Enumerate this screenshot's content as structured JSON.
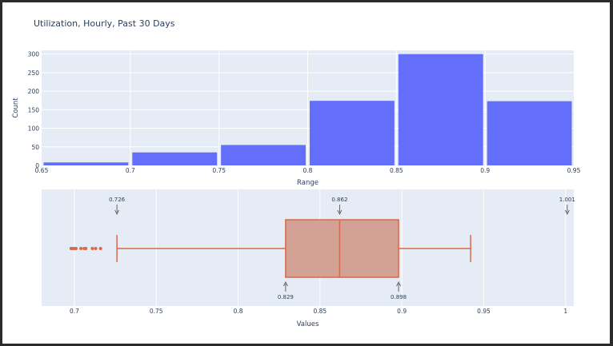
{
  "title": "Utilization, Hourly, Past 30 Days",
  "colors": {
    "plot_bg": "#e5ecf6",
    "grid": "#ffffff",
    "bar": "#636efa",
    "box_fill": "#d4a294",
    "box_line": "#d6694a",
    "text": "#2a3f5f"
  },
  "chart_data": [
    {
      "type": "bar",
      "subtype": "histogram",
      "title": "Utilization, Hourly, Past 30 Days",
      "xlabel": "Range",
      "ylabel": "Count",
      "xlim": [
        0.65,
        0.95
      ],
      "ylim": [
        0,
        310
      ],
      "x_ticks": [
        0.65,
        0.7,
        0.75,
        0.8,
        0.85,
        0.9,
        0.95
      ],
      "x_tick_labels": [
        "0.65",
        "0.7",
        "0.75",
        "0.8",
        "0.85",
        "0.9",
        "0.95"
      ],
      "y_ticks": [
        0,
        50,
        100,
        150,
        200,
        250,
        300
      ],
      "y_tick_labels": [
        "0",
        "50",
        "100",
        "150",
        "200",
        "250",
        "300"
      ],
      "bins": [
        {
          "start": 0.65,
          "end": 0.7,
          "value": 8
        },
        {
          "start": 0.7,
          "end": 0.75,
          "value": 35
        },
        {
          "start": 0.75,
          "end": 0.8,
          "value": 55
        },
        {
          "start": 0.8,
          "end": 0.85,
          "value": 174
        },
        {
          "start": 0.85,
          "end": 0.9,
          "value": 300
        },
        {
          "start": 0.9,
          "end": 0.95,
          "value": 173
        }
      ],
      "grid": true
    },
    {
      "type": "box",
      "orientation": "horizontal",
      "xlabel": "Values",
      "xlim": [
        0.68,
        1.005
      ],
      "x_ticks": [
        0.7,
        0.75,
        0.8,
        0.85,
        0.9,
        0.95,
        1
      ],
      "x_tick_labels": [
        "0.7",
        "0.75",
        "0.8",
        "0.85",
        "0.9",
        "0.95",
        "1"
      ],
      "q1": 0.829,
      "median": 0.862,
      "q3": 0.898,
      "lower_whisker": 0.726,
      "upper_whisker": 0.942,
      "outliers": [
        0.698,
        0.699,
        0.7,
        0.701,
        0.704,
        0.706,
        0.707,
        0.711,
        0.713,
        0.716
      ],
      "annotations": [
        {
          "text": "0.726",
          "value": 0.726,
          "side": "top"
        },
        {
          "text": "0.862",
          "value": 0.862,
          "side": "top"
        },
        {
          "text": "1.001",
          "value": 1.001,
          "side": "top"
        },
        {
          "text": "0.829",
          "value": 0.829,
          "side": "bottom"
        },
        {
          "text": "0.898",
          "value": 0.898,
          "side": "bottom"
        }
      ],
      "grid": true
    }
  ]
}
